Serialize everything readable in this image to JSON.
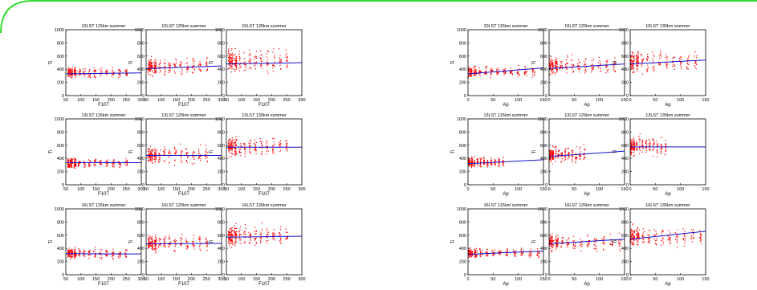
{
  "frame": {
    "accent": "#33dd33"
  },
  "colors": {
    "points": "#ff0000",
    "fit": "#1111cc",
    "axes": "#000000"
  },
  "chart_data": [
    {
      "type": "scatter",
      "title": "10LST 115km summer",
      "xlabel": "F107",
      "ylabel": "Ti",
      "xlim": [
        50,
        300
      ],
      "ylim": [
        0,
        1000
      ],
      "xticks": [
        50,
        100,
        150,
        200,
        250,
        300
      ],
      "yticks": [
        0,
        200,
        400,
        600,
        800,
        1000
      ],
      "fit": {
        "x": [
          50,
          300
        ],
        "y": [
          330,
          345
        ]
      },
      "cloud": {
        "xmin": 60,
        "xmax": 250,
        "ycenter": 350,
        "spread": 70
      }
    },
    {
      "type": "scatter",
      "title": "10LST 125km summer",
      "xlabel": "F107",
      "ylabel": "Ti",
      "xlim": [
        50,
        300
      ],
      "ylim": [
        0,
        1000
      ],
      "xticks": [
        50,
        100,
        150,
        200,
        250,
        300
      ],
      "yticks": [
        0,
        200,
        400,
        600,
        800,
        1000
      ],
      "fit": {
        "x": [
          50,
          300
        ],
        "y": [
          410,
          450
        ]
      },
      "cloud": {
        "xmin": 60,
        "xmax": 250,
        "ycenter": 440,
        "spread": 120
      }
    },
    {
      "type": "scatter",
      "title": "10LST 135km summer",
      "xlabel": "F107",
      "ylabel": "Ti",
      "xlim": [
        50,
        300
      ],
      "ylim": [
        0,
        1000
      ],
      "xticks": [
        50,
        100,
        150,
        200,
        250,
        300
      ],
      "yticks": [
        0,
        200,
        400,
        600,
        800,
        1000
      ],
      "fit": {
        "x": [
          50,
          300
        ],
        "y": [
          480,
          500
        ]
      },
      "cloud": {
        "xmin": 60,
        "xmax": 250,
        "ycenter": 520,
        "spread": 160
      }
    },
    {
      "type": "scatter",
      "title": "13LST 115km summer",
      "xlabel": "F107",
      "ylabel": "Ti",
      "xlim": [
        50,
        300
      ],
      "ylim": [
        0,
        1000
      ],
      "xticks": [
        50,
        100,
        150,
        200,
        250,
        300
      ],
      "yticks": [
        0,
        200,
        400,
        600,
        800,
        1000
      ],
      "fit": {
        "x": [
          50,
          300
        ],
        "y": [
          335,
          335
        ]
      },
      "cloud": {
        "xmin": 60,
        "xmax": 250,
        "ycenter": 330,
        "spread": 70
      }
    },
    {
      "type": "scatter",
      "title": "13LST 125km summer",
      "xlabel": "F107",
      "ylabel": "Ti",
      "xlim": [
        50,
        300
      ],
      "ylim": [
        0,
        1000
      ],
      "xticks": [
        50,
        100,
        150,
        200,
        250,
        300
      ],
      "yticks": [
        0,
        200,
        400,
        600,
        800,
        1000
      ],
      "fit": {
        "x": [
          50,
          300
        ],
        "y": [
          445,
          445
        ]
      },
      "cloud": {
        "xmin": 60,
        "xmax": 250,
        "ycenter": 450,
        "spread": 120
      }
    },
    {
      "type": "scatter",
      "title": "13LST 135km summer",
      "xlabel": "F107",
      "ylabel": "Ti",
      "xlim": [
        50,
        300
      ],
      "ylim": [
        0,
        1000
      ],
      "xticks": [
        50,
        100,
        150,
        200,
        250,
        300
      ],
      "yticks": [
        0,
        200,
        400,
        600,
        800,
        1000
      ],
      "fit": {
        "x": [
          50,
          300
        ],
        "y": [
          570,
          570
        ]
      },
      "cloud": {
        "xmin": 60,
        "xmax": 250,
        "ycenter": 580,
        "spread": 130
      }
    },
    {
      "type": "scatter",
      "title": "16LST 115km summer",
      "xlabel": "F107",
      "ylabel": "Ti",
      "xlim": [
        50,
        300
      ],
      "ylim": [
        0,
        1000
      ],
      "xticks": [
        50,
        100,
        150,
        200,
        250,
        300
      ],
      "yticks": [
        0,
        200,
        400,
        600,
        800,
        1000
      ],
      "fit": {
        "x": [
          50,
          300
        ],
        "y": [
          320,
          315
        ]
      },
      "cloud": {
        "xmin": 60,
        "xmax": 250,
        "ycenter": 320,
        "spread": 70
      }
    },
    {
      "type": "scatter",
      "title": "16LST 125km summer",
      "xlabel": "F107",
      "ylabel": "Ti",
      "xlim": [
        50,
        300
      ],
      "ylim": [
        0,
        1000
      ],
      "xticks": [
        50,
        100,
        150,
        200,
        250,
        300
      ],
      "yticks": [
        0,
        200,
        400,
        600,
        800,
        1000
      ],
      "fit": {
        "x": [
          50,
          300
        ],
        "y": [
          470,
          475
        ]
      },
      "cloud": {
        "xmin": 60,
        "xmax": 250,
        "ycenter": 480,
        "spread": 120
      }
    },
    {
      "type": "scatter",
      "title": "16LST 135km summer",
      "xlabel": "F107",
      "ylabel": "Ti",
      "xlim": [
        50,
        300
      ],
      "ylim": [
        0,
        1000
      ],
      "xticks": [
        50,
        100,
        150,
        200,
        250,
        300
      ],
      "yticks": [
        0,
        200,
        400,
        600,
        800,
        1000
      ],
      "fit": {
        "x": [
          50,
          300
        ],
        "y": [
          570,
          585
        ]
      },
      "cloud": {
        "xmin": 60,
        "xmax": 250,
        "ycenter": 590,
        "spread": 140
      }
    },
    {
      "type": "scatter",
      "title": "10LST 115km summer",
      "xlabel": "Ap",
      "ylabel": "Ti",
      "xlim": [
        0,
        150
      ],
      "ylim": [
        0,
        1000
      ],
      "xticks": [
        0,
        50,
        100,
        150
      ],
      "yticks": [
        0,
        200,
        400,
        600,
        800,
        1000
      ],
      "fit": {
        "x": [
          0,
          150
        ],
        "y": [
          330,
          420
        ]
      },
      "cloud": {
        "xmin": 0,
        "xmax": 130,
        "ycenter": 360,
        "spread": 80
      }
    },
    {
      "type": "scatter",
      "title": "10LST 125km summer",
      "xlabel": "Ap",
      "ylabel": "Ti",
      "xlim": [
        0,
        150
      ],
      "ylim": [
        0,
        1000
      ],
      "xticks": [
        0,
        50,
        100,
        150
      ],
      "yticks": [
        0,
        200,
        400,
        600,
        800,
        1000
      ],
      "fit": {
        "x": [
          0,
          150
        ],
        "y": [
          410,
          480
        ]
      },
      "cloud": {
        "xmin": 0,
        "xmax": 130,
        "ycenter": 450,
        "spread": 120
      }
    },
    {
      "type": "scatter",
      "title": "10LST 135km summer",
      "xlabel": "Ap",
      "ylabel": "Ti",
      "xlim": [
        0,
        150
      ],
      "ylim": [
        0,
        1000
      ],
      "xticks": [
        0,
        50,
        100,
        150
      ],
      "yticks": [
        0,
        200,
        400,
        600,
        800,
        1000
      ],
      "fit": {
        "x": [
          0,
          150
        ],
        "y": [
          480,
          540
        ]
      },
      "cloud": {
        "xmin": 0,
        "xmax": 130,
        "ycenter": 520,
        "spread": 150
      }
    },
    {
      "type": "scatter",
      "title": "13LST 115km summer",
      "xlabel": "Ap",
      "ylabel": "Ti",
      "xlim": [
        0,
        150
      ],
      "ylim": [
        0,
        1000
      ],
      "xticks": [
        0,
        50,
        100,
        150
      ],
      "yticks": [
        0,
        200,
        400,
        600,
        800,
        1000
      ],
      "fit": {
        "x": [
          0,
          150
        ],
        "y": [
          320,
          380
        ]
      },
      "cloud": {
        "xmin": 0,
        "xmax": 70,
        "ycenter": 340,
        "spread": 70
      }
    },
    {
      "type": "scatter",
      "title": "13LST 125km summer",
      "xlabel": "Ap",
      "ylabel": "Ti",
      "xlim": [
        0,
        150
      ],
      "ylim": [
        0,
        1000
      ],
      "xticks": [
        0,
        50,
        100,
        150
      ],
      "yticks": [
        0,
        200,
        400,
        600,
        800,
        1000
      ],
      "fit": {
        "x": [
          0,
          150
        ],
        "y": [
          430,
          510
        ]
      },
      "cloud": {
        "xmin": 0,
        "xmax": 70,
        "ycenter": 460,
        "spread": 110
      }
    },
    {
      "type": "scatter",
      "title": "13LST 135km summer",
      "xlabel": "Ap",
      "ylabel": "Ti",
      "xlim": [
        0,
        150
      ],
      "ylim": [
        0,
        1000
      ],
      "xticks": [
        0,
        50,
        100,
        150
      ],
      "yticks": [
        0,
        200,
        400,
        600,
        800,
        1000
      ],
      "fit": {
        "x": [
          0,
          150
        ],
        "y": [
          575,
          575
        ]
      },
      "cloud": {
        "xmin": 0,
        "xmax": 70,
        "ycenter": 580,
        "spread": 130
      }
    },
    {
      "type": "scatter",
      "title": "16LST 115km summer",
      "xlabel": "Ap",
      "ylabel": "Ti",
      "xlim": [
        0,
        150
      ],
      "ylim": [
        0,
        1000
      ],
      "xticks": [
        0,
        50,
        100,
        150
      ],
      "yticks": [
        0,
        200,
        400,
        600,
        800,
        1000
      ],
      "fit": {
        "x": [
          0,
          150
        ],
        "y": [
          310,
          360
        ]
      },
      "cloud": {
        "xmin": 0,
        "xmax": 140,
        "ycenter": 330,
        "spread": 70
      }
    },
    {
      "type": "scatter",
      "title": "16LST 125km summer",
      "xlabel": "Ap",
      "ylabel": "Ti",
      "xlim": [
        0,
        150
      ],
      "ylim": [
        0,
        1000
      ],
      "xticks": [
        0,
        50,
        100,
        150
      ],
      "yticks": [
        0,
        200,
        400,
        600,
        800,
        1000
      ],
      "fit": {
        "x": [
          0,
          150
        ],
        "y": [
          470,
          540
        ]
      },
      "cloud": {
        "xmin": 0,
        "xmax": 140,
        "ycenter": 490,
        "spread": 120
      }
    },
    {
      "type": "scatter",
      "title": "16LST 135km summer",
      "xlabel": "Ap",
      "ylabel": "Ti",
      "xlim": [
        0,
        150
      ],
      "ylim": [
        0,
        1000
      ],
      "xticks": [
        0,
        50,
        100,
        150
      ],
      "yticks": [
        0,
        200,
        400,
        600,
        800,
        1000
      ],
      "fit": {
        "x": [
          0,
          150
        ],
        "y": [
          540,
          660
        ]
      },
      "cloud": {
        "xmin": 0,
        "xmax": 140,
        "ycenter": 580,
        "spread": 140
      }
    }
  ]
}
